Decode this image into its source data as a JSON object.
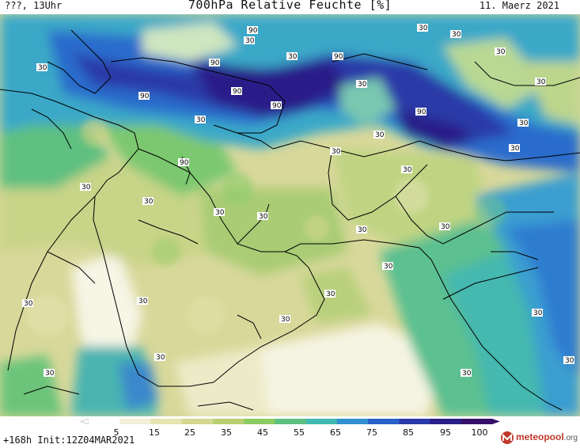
{
  "header": {
    "left_label": "???, 13Uhr",
    "title": "700hPa Relative Feuchte [%]",
    "date": "11. Maerz 2021"
  },
  "footer": {
    "init": "+168h Init:12Z04MAR2021",
    "logo": "meteopool",
    "logo_tld": ".org"
  },
  "colorbar": {
    "ticks": [
      "5",
      "15",
      "25",
      "35",
      "45",
      "55",
      "65",
      "75",
      "85",
      "95",
      "100"
    ],
    "colors": [
      "#ffffff",
      "#f2f0d8",
      "#e6e4b0",
      "#d4d890",
      "#b8d070",
      "#8ccc60",
      "#5ec080",
      "#40b8b0",
      "#3090d0",
      "#2860c8",
      "#2a3aa8",
      "#2a1e88",
      "#38106a"
    ]
  },
  "map_labels": {
    "levels": [
      "30",
      "90",
      "30",
      "30",
      "90",
      "90",
      "30",
      "30",
      "30",
      "90",
      "30",
      "90",
      "90",
      "30",
      "30",
      "90",
      "30",
      "30",
      "30",
      "90",
      "30",
      "30",
      "30",
      "30",
      "30",
      "30",
      "30",
      "30",
      "30",
      "30",
      "30",
      "30",
      "30",
      "30",
      "30",
      "30",
      "30",
      "30"
    ]
  }
}
